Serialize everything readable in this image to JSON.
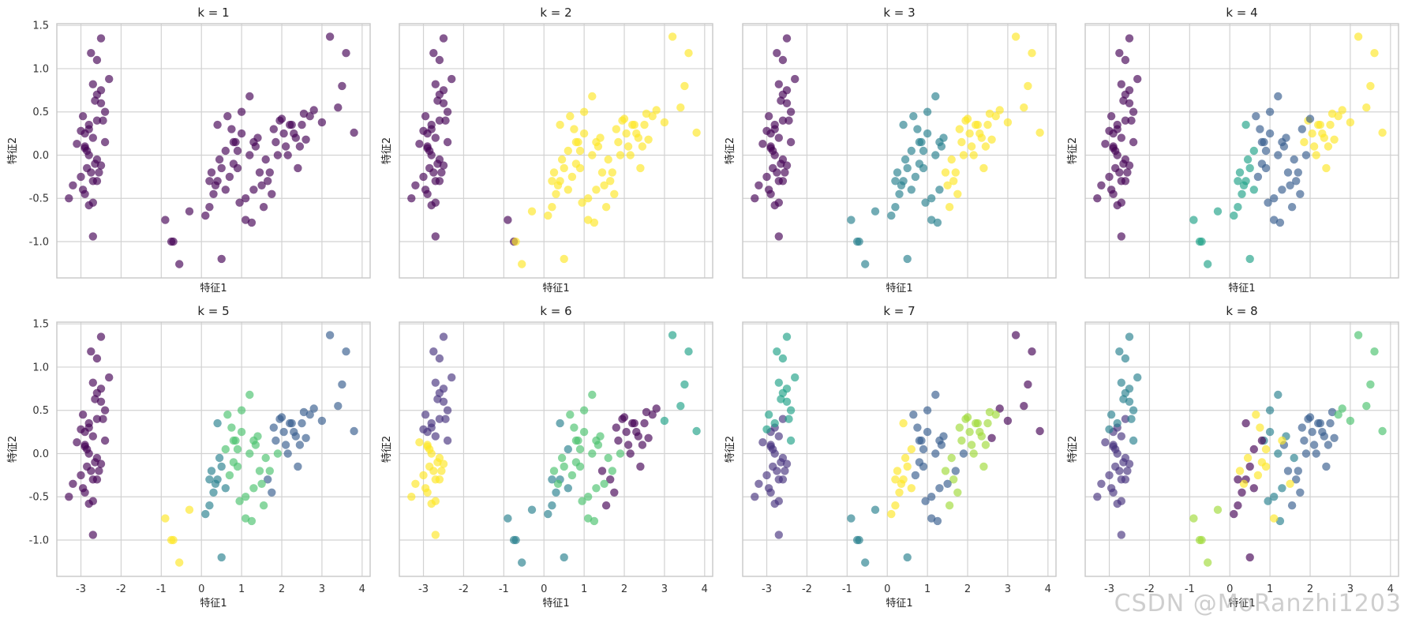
{
  "watermark": "CSDN @MoRanzhi1203",
  "colors": {
    "c0": "#440154",
    "c1": "#46337e",
    "c2": "#365c8d",
    "c3": "#277f8e",
    "c4": "#1fa187",
    "c5": "#4ac16d",
    "c6": "#a0da39",
    "c7": "#fde725"
  },
  "chart_data": {
    "type": "scatter",
    "xlabel": "特征1",
    "ylabel": "特征2",
    "xlim": [
      -3.6,
      4.2
    ],
    "ylim": [
      -1.42,
      1.52
    ],
    "xticks": [
      "-3",
      "-2",
      "-1",
      "0",
      "1",
      "2",
      "3",
      "4"
    ],
    "yticks": [
      "-1.0",
      "-0.5",
      "0.0",
      "0.5",
      "1.0",
      "1.5"
    ],
    "xtick_values": [
      -3,
      -2,
      -1,
      0,
      1,
      2,
      3,
      4
    ],
    "ytick_values": [
      -1.0,
      -0.5,
      0.0,
      0.5,
      1.0,
      1.5
    ],
    "x": [
      -2.7,
      -2.6,
      -2.4,
      -2.5,
      -2.3,
      -2.8,
      -2.6,
      -2.9,
      -2.7,
      -2.75,
      -2.6,
      -2.5,
      -2.9,
      -2.8,
      -2.65,
      -2.55,
      -2.4,
      -2.7,
      -2.85,
      -3.0,
      -2.95,
      -2.7,
      -2.6,
      -2.5,
      -2.45,
      -2.8,
      -2.9,
      -3.1,
      -3.2,
      -3.3,
      -2.8,
      -2.7,
      -2.75,
      -2.6,
      -2.85,
      -2.9,
      -2.95,
      -3.0,
      -2.65,
      -2.5,
      -0.9,
      -0.75,
      -0.7,
      -0.55,
      -0.3,
      0.1,
      0.2,
      0.3,
      0.4,
      0.5,
      0.6,
      0.5,
      0.35,
      0.25,
      0.45,
      0.7,
      0.8,
      0.9,
      1.0,
      1.1,
      1.2,
      1.3,
      1.25,
      0.95,
      0.85,
      0.75,
      0.65,
      1.35,
      1.45,
      1.55,
      1.65,
      1.75,
      1.85,
      1.95,
      2.05,
      2.15,
      2.25,
      2.35,
      2.45,
      2.55,
      0.2,
      0.4,
      0.6,
      0.8,
      1.0,
      1.2,
      1.4,
      1.6,
      1.8,
      2.0,
      2.2,
      2.4,
      2.6,
      2.8,
      3.0,
      3.2,
      3.4,
      3.6,
      3.8,
      3.5,
      1.3,
      1.5,
      1.7,
      1.9,
      2.1,
      2.3,
      2.5,
      2.7,
      1.1,
      0.9
    ],
    "y": [
      0.82,
      0.7,
      0.5,
      0.6,
      0.88,
      0.3,
      0.4,
      0.25,
      0.2,
      1.18,
      1.1,
      1.35,
      0.08,
      0.0,
      -0.1,
      -0.2,
      0.15,
      -0.3,
      -0.15,
      -0.25,
      -0.4,
      -0.55,
      -0.3,
      -0.12,
      0.4,
      0.35,
      0.1,
      0.13,
      -0.35,
      -0.5,
      -0.58,
      -0.94,
      -0.2,
      -0.05,
      0.05,
      -0.45,
      0.45,
      0.28,
      0.63,
      0.75,
      -0.75,
      -1.0,
      -1.0,
      -1.26,
      -0.65,
      -0.7,
      -0.6,
      -0.45,
      -0.3,
      -1.2,
      -0.4,
      -0.15,
      -0.35,
      -0.2,
      -0.05,
      -0.25,
      -0.1,
      0.05,
      0.25,
      -0.5,
      0.0,
      -0.4,
      -0.78,
      -0.55,
      0.15,
      0.3,
      0.45,
      0.1,
      -0.2,
      -0.6,
      -0.3,
      -0.45,
      0.15,
      0.4,
      0.25,
      0.0,
      0.35,
      0.2,
      0.1,
      0.48,
      -0.3,
      0.35,
      0.05,
      0.15,
      0.5,
      0.68,
      0.2,
      -0.05,
      0.3,
      0.42,
      0.35,
      -0.15,
      0.18,
      0.52,
      0.38,
      1.37,
      0.55,
      1.18,
      0.26,
      0.8,
      0.15,
      -0.35,
      -0.2,
      0.0,
      0.1,
      0.25,
      0.35,
      0.45,
      -0.75,
      -0.15
    ],
    "panels": [
      {
        "title": "k = 1",
        "labels": [
          0,
          0,
          0,
          0,
          0,
          0,
          0,
          0,
          0,
          0,
          0,
          0,
          0,
          0,
          0,
          0,
          0,
          0,
          0,
          0,
          0,
          0,
          0,
          0,
          0,
          0,
          0,
          0,
          0,
          0,
          0,
          0,
          0,
          0,
          0,
          0,
          0,
          0,
          0,
          0,
          0,
          0,
          0,
          0,
          0,
          0,
          0,
          0,
          0,
          0,
          0,
          0,
          0,
          0,
          0,
          0,
          0,
          0,
          0,
          0,
          0,
          0,
          0,
          0,
          0,
          0,
          0,
          0,
          0,
          0,
          0,
          0,
          0,
          0,
          0,
          0,
          0,
          0,
          0,
          0,
          0,
          0,
          0,
          0,
          0,
          0,
          0,
          0,
          0,
          0,
          0,
          0,
          0,
          0,
          0,
          0,
          0,
          0,
          0,
          0,
          0,
          0,
          0,
          0,
          0,
          0,
          0,
          0,
          0,
          0
        ]
      },
      {
        "title": "k = 2",
        "labels": [
          0,
          0,
          0,
          0,
          0,
          0,
          0,
          0,
          0,
          0,
          0,
          0,
          0,
          0,
          0,
          0,
          0,
          0,
          0,
          0,
          0,
          0,
          0,
          0,
          0,
          0,
          0,
          0,
          0,
          0,
          0,
          0,
          0,
          0,
          0,
          0,
          0,
          0,
          0,
          0,
          0,
          0,
          7,
          7,
          7,
          7,
          7,
          7,
          7,
          7,
          7,
          7,
          7,
          7,
          7,
          7,
          7,
          7,
          7,
          7,
          7,
          7,
          7,
          7,
          7,
          7,
          7,
          7,
          7,
          7,
          7,
          7,
          7,
          7,
          7,
          7,
          7,
          7,
          7,
          7,
          7,
          7,
          7,
          7,
          7,
          7,
          7,
          7,
          7,
          7,
          7,
          7,
          7,
          7,
          7,
          7,
          7,
          7,
          7,
          7,
          7,
          7,
          7,
          7,
          7,
          7,
          7,
          7,
          7,
          7
        ]
      },
      {
        "title": "k = 3",
        "labels": [
          0,
          0,
          0,
          0,
          0,
          0,
          0,
          0,
          0,
          0,
          0,
          0,
          0,
          0,
          0,
          0,
          0,
          0,
          0,
          0,
          0,
          0,
          0,
          0,
          0,
          0,
          0,
          0,
          0,
          0,
          0,
          0,
          0,
          0,
          0,
          0,
          0,
          0,
          0,
          0,
          3,
          3,
          3,
          3,
          3,
          3,
          3,
          3,
          3,
          3,
          3,
          3,
          3,
          3,
          3,
          3,
          3,
          3,
          3,
          3,
          3,
          3,
          3,
          3,
          3,
          3,
          3,
          3,
          7,
          7,
          7,
          7,
          7,
          7,
          7,
          7,
          7,
          7,
          7,
          7,
          3,
          3,
          3,
          3,
          3,
          3,
          3,
          7,
          7,
          7,
          7,
          7,
          7,
          7,
          7,
          7,
          7,
          7,
          7,
          7,
          3,
          7,
          7,
          7,
          7,
          7,
          7,
          7,
          3,
          3
        ]
      },
      {
        "title": "k = 4",
        "labels": [
          0,
          0,
          0,
          0,
          0,
          0,
          0,
          0,
          0,
          0,
          0,
          0,
          0,
          0,
          0,
          0,
          0,
          0,
          0,
          0,
          0,
          0,
          0,
          0,
          0,
          0,
          0,
          0,
          0,
          0,
          0,
          0,
          0,
          0,
          0,
          0,
          0,
          0,
          0,
          0,
          4,
          4,
          4,
          4,
          4,
          4,
          4,
          4,
          4,
          4,
          4,
          4,
          4,
          4,
          4,
          2,
          2,
          2,
          2,
          2,
          2,
          2,
          2,
          2,
          2,
          2,
          2,
          2,
          2,
          2,
          2,
          2,
          7,
          7,
          7,
          7,
          7,
          7,
          7,
          7,
          4,
          4,
          4,
          2,
          2,
          2,
          2,
          2,
          2,
          2,
          7,
          7,
          7,
          7,
          7,
          7,
          7,
          7,
          7,
          7,
          2,
          2,
          2,
          2,
          7,
          7,
          7,
          7,
          2,
          2
        ]
      },
      {
        "title": "k = 5",
        "labels": [
          0,
          0,
          0,
          0,
          0,
          0,
          0,
          0,
          0,
          0,
          0,
          0,
          0,
          0,
          0,
          0,
          0,
          0,
          0,
          0,
          0,
          0,
          0,
          0,
          0,
          0,
          0,
          0,
          0,
          0,
          0,
          0,
          0,
          0,
          0,
          0,
          0,
          0,
          0,
          0,
          7,
          7,
          7,
          7,
          7,
          3,
          3,
          3,
          3,
          3,
          3,
          3,
          3,
          3,
          3,
          5,
          5,
          5,
          5,
          5,
          5,
          5,
          5,
          5,
          5,
          5,
          5,
          5,
          5,
          5,
          2,
          2,
          2,
          2,
          2,
          2,
          2,
          2,
          2,
          2,
          3,
          3,
          5,
          5,
          5,
          5,
          5,
          5,
          2,
          2,
          2,
          2,
          2,
          2,
          2,
          2,
          2,
          2,
          2,
          2,
          5,
          5,
          5,
          5,
          2,
          2,
          2,
          2,
          5,
          5
        ]
      },
      {
        "title": "k = 6",
        "labels": [
          1,
          1,
          1,
          1,
          1,
          1,
          1,
          1,
          1,
          1,
          1,
          1,
          7,
          7,
          7,
          7,
          1,
          7,
          7,
          7,
          7,
          7,
          7,
          7,
          1,
          1,
          7,
          7,
          7,
          7,
          7,
          7,
          7,
          7,
          7,
          7,
          1,
          1,
          1,
          1,
          3,
          3,
          3,
          3,
          3,
          3,
          3,
          3,
          3,
          3,
          3,
          5,
          5,
          5,
          5,
          5,
          5,
          5,
          5,
          5,
          5,
          5,
          5,
          5,
          5,
          5,
          5,
          5,
          0,
          0,
          0,
          0,
          0,
          0,
          0,
          0,
          0,
          0,
          0,
          0,
          3,
          3,
          3,
          5,
          5,
          5,
          5,
          5,
          0,
          0,
          0,
          0,
          0,
          0,
          4,
          4,
          4,
          4,
          4,
          4,
          5,
          5,
          5,
          5,
          0,
          0,
          0,
          0,
          5,
          5
        ]
      },
      {
        "title": "k = 7",
        "labels": [
          4,
          4,
          4,
          4,
          4,
          1,
          1,
          1,
          1,
          4,
          4,
          4,
          1,
          1,
          1,
          1,
          4,
          1,
          1,
          1,
          1,
          1,
          1,
          1,
          4,
          4,
          1,
          1,
          1,
          1,
          1,
          1,
          1,
          1,
          1,
          1,
          4,
          4,
          4,
          4,
          3,
          3,
          3,
          3,
          3,
          7,
          7,
          7,
          7,
          3,
          7,
          7,
          7,
          7,
          7,
          2,
          2,
          2,
          2,
          2,
          2,
          2,
          2,
          2,
          2,
          2,
          2,
          2,
          6,
          6,
          6,
          6,
          6,
          6,
          6,
          6,
          6,
          6,
          6,
          6,
          7,
          7,
          7,
          2,
          2,
          2,
          2,
          6,
          6,
          6,
          6,
          6,
          0,
          0,
          0,
          0,
          0,
          0,
          0,
          0,
          2,
          2,
          2,
          2,
          6,
          6,
          6,
          6,
          2,
          2
        ]
      },
      {
        "title": "k = 8",
        "labels": [
          3,
          3,
          3,
          3,
          3,
          1,
          1,
          1,
          1,
          3,
          3,
          3,
          1,
          1,
          1,
          1,
          3,
          1,
          1,
          1,
          1,
          1,
          1,
          1,
          3,
          3,
          1,
          1,
          1,
          1,
          1,
          1,
          1,
          1,
          1,
          1,
          3,
          3,
          3,
          3,
          6,
          6,
          6,
          6,
          6,
          0,
          0,
          0,
          0,
          0,
          0,
          0,
          7,
          7,
          7,
          7,
          7,
          7,
          3,
          3,
          3,
          3,
          3,
          3,
          3,
          7,
          7,
          2,
          2,
          2,
          2,
          2,
          2,
          2,
          2,
          2,
          2,
          2,
          2,
          2,
          0,
          0,
          0,
          0,
          3,
          3,
          3,
          3,
          2,
          2,
          2,
          2,
          2,
          5,
          5,
          5,
          5,
          5,
          5,
          5,
          7,
          7,
          2,
          2,
          2,
          2,
          2,
          5,
          7,
          7
        ]
      }
    ]
  }
}
